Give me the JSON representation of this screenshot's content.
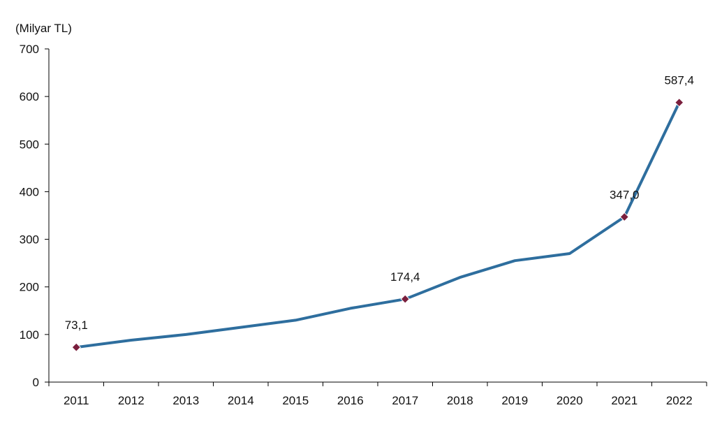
{
  "chart_data": {
    "type": "line",
    "unit_label": "(Milyar TL)",
    "categories": [
      "2011",
      "2012",
      "2013",
      "2014",
      "2015",
      "2016",
      "2017",
      "2018",
      "2019",
      "2020",
      "2021",
      "2022"
    ],
    "series": [
      {
        "values": [
          73.1,
          88,
          100,
          115,
          130,
          155,
          174.4,
          220,
          255,
          270,
          347.0,
          587.4
        ]
      }
    ],
    "data_labels": [
      {
        "category": "2011",
        "value": 73.1,
        "text": "73,1"
      },
      {
        "category": "2017",
        "value": 174.4,
        "text": "174,4"
      },
      {
        "category": "2021",
        "value": 347.0,
        "text": "347,0"
      },
      {
        "category": "2022",
        "value": 587.4,
        "text": "587,4"
      }
    ],
    "yticks": [
      "0",
      "100",
      "200",
      "300",
      "400",
      "500",
      "600",
      "700"
    ],
    "ylim": [
      0,
      700
    ],
    "grid": false,
    "legend": "none",
    "colors": {
      "line": "#2e6e9e",
      "marker": "#7a1f3d",
      "axis": "#000000"
    }
  }
}
